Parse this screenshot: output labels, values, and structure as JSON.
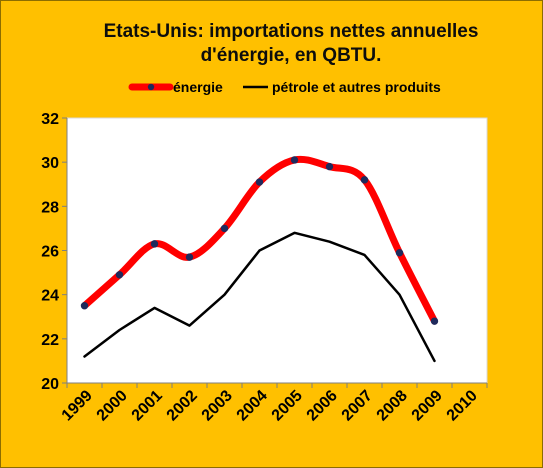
{
  "chart_data": {
    "type": "line",
    "title_lines": [
      "Etats-Unis: importations nettes annuelles",
      "d'énergie, en QBTU."
    ],
    "x": [
      "1999",
      "2000",
      "2001",
      "2002",
      "2003",
      "2004",
      "2005",
      "2006",
      "2007",
      "2008",
      "2009",
      "2010"
    ],
    "y_ticks": [
      "20",
      "22",
      "24",
      "26",
      "28",
      "30",
      "32"
    ],
    "ylim": [
      20,
      32
    ],
    "grid": false,
    "legend_position": "top",
    "series": [
      {
        "name": "énergie",
        "values": [
          23.5,
          24.9,
          26.3,
          25.7,
          27.0,
          29.1,
          30.1,
          29.8,
          29.2,
          25.9,
          22.8,
          null
        ],
        "color": "#FF0000",
        "marker": true,
        "smooth": true
      },
      {
        "name": "pétrole et autres produits",
        "values": [
          21.2,
          22.4,
          23.4,
          22.6,
          24.0,
          26.0,
          26.8,
          26.4,
          25.8,
          24.0,
          21.0,
          null
        ],
        "color": "#000000",
        "marker": false,
        "smooth": false
      }
    ]
  },
  "colors": {
    "frame_background": "#FFC000",
    "plot_background": "#FFFFFF"
  }
}
